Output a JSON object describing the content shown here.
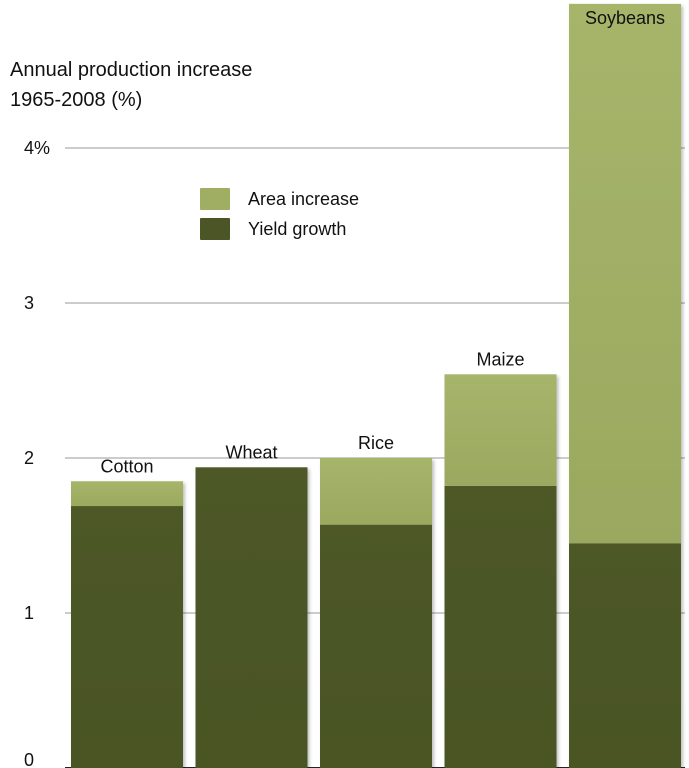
{
  "chart_data": {
    "type": "bar",
    "stacked": true,
    "title": "Annual production increase",
    "subtitle": "1965-2008 (%)",
    "categories": [
      "Cotton",
      "Wheat",
      "Rice",
      "Maize",
      "Soybeans"
    ],
    "series": [
      {
        "name": "Yield growth",
        "values": [
          1.69,
          1.94,
          1.57,
          1.82,
          1.45
        ],
        "color": "#4b5526"
      },
      {
        "name": "Area increase",
        "values": [
          0.16,
          0.0,
          0.43,
          0.72,
          3.48
        ],
        "color": "#9fae62"
      }
    ],
    "ylim": [
      0,
      4.5
    ],
    "yticks": [
      {
        "value": 0,
        "label": "0"
      },
      {
        "value": 1,
        "label": "1"
      },
      {
        "value": 2,
        "label": "2"
      },
      {
        "value": 3,
        "label": "3"
      },
      {
        "value": 4,
        "label": "4%"
      }
    ],
    "grid": true,
    "legend_position": "top-left"
  }
}
